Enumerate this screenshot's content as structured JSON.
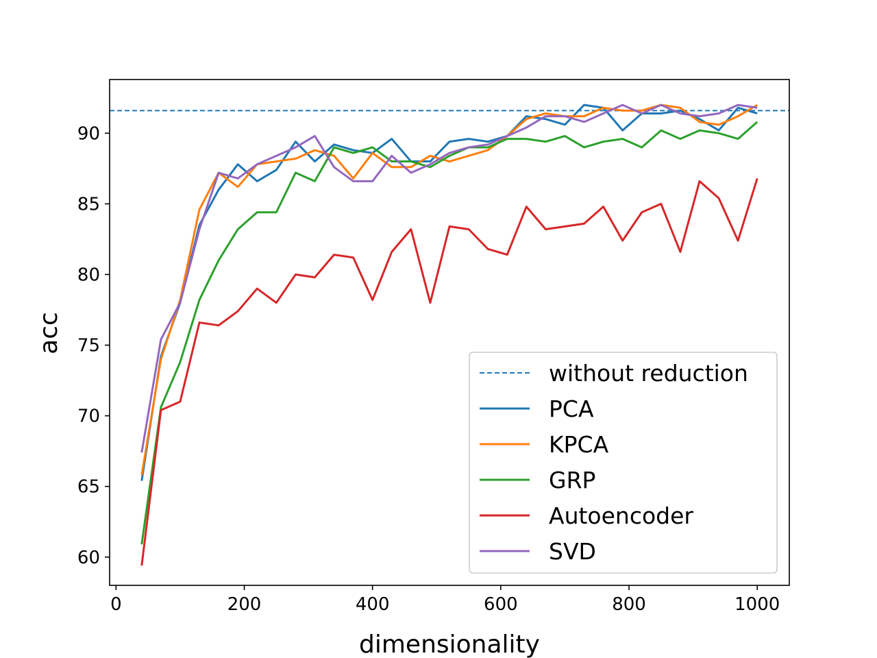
{
  "chart_data": {
    "type": "line",
    "title": "",
    "xlabel": "dimensionality",
    "ylabel": "acc",
    "xlim": [
      -10,
      1050
    ],
    "ylim": [
      58,
      93.8
    ],
    "xticks": [
      0,
      200,
      400,
      600,
      800,
      1000
    ],
    "yticks": [
      60,
      65,
      70,
      75,
      80,
      85,
      90
    ],
    "grid": false,
    "legend_position": "lower-right",
    "reference_line": {
      "name": "without reduction",
      "y": 91.6,
      "color": "#1f77b4",
      "style": "dashed"
    },
    "x": [
      40,
      70,
      100,
      130,
      160,
      190,
      220,
      250,
      280,
      310,
      340,
      370,
      400,
      430,
      460,
      490,
      520,
      550,
      580,
      610,
      640,
      670,
      700,
      730,
      760,
      790,
      820,
      850,
      880,
      910,
      940,
      970,
      1000
    ],
    "series": [
      {
        "name": "PCA",
        "color": "#1f77b4",
        "values": [
          65.4,
          74.2,
          78.0,
          83.5,
          86.0,
          87.8,
          86.6,
          87.4,
          89.4,
          88.0,
          89.2,
          88.8,
          88.6,
          89.6,
          88.0,
          88.0,
          89.4,
          89.6,
          89.4,
          89.8,
          91.2,
          91.0,
          90.6,
          92.0,
          91.8,
          90.2,
          91.4,
          91.4,
          91.6,
          91.0,
          90.2,
          91.8,
          91.4
        ]
      },
      {
        "name": "KPCA",
        "color": "#ff7f0e",
        "values": [
          65.8,
          74.0,
          78.2,
          84.6,
          87.2,
          86.2,
          87.8,
          88.0,
          88.2,
          88.8,
          88.4,
          86.8,
          88.6,
          87.6,
          87.6,
          88.4,
          88.0,
          88.4,
          88.8,
          89.8,
          91.0,
          91.4,
          91.2,
          91.2,
          91.8,
          91.6,
          91.6,
          92.0,
          91.8,
          90.8,
          90.6,
          91.2,
          92.0
        ]
      },
      {
        "name": "GRP",
        "color": "#2ca02c",
        "values": [
          60.9,
          70.6,
          73.8,
          78.2,
          81.0,
          83.2,
          84.4,
          84.4,
          87.2,
          86.6,
          89.0,
          88.6,
          89.0,
          88.0,
          88.0,
          87.6,
          88.4,
          89.0,
          89.0,
          89.6,
          89.6,
          89.4,
          89.8,
          89.0,
          89.4,
          89.6,
          89.0,
          90.2,
          89.6,
          90.2,
          90.0,
          89.6,
          90.8
        ]
      },
      {
        "name": "Autoencoder",
        "color": "#d62728",
        "values": [
          59.4,
          70.4,
          71.0,
          76.6,
          76.4,
          77.4,
          79.0,
          78.0,
          80.0,
          79.8,
          81.4,
          81.2,
          78.2,
          81.6,
          83.2,
          78.0,
          83.4,
          83.2,
          81.8,
          81.4,
          84.8,
          83.2,
          83.4,
          83.6,
          84.8,
          82.4,
          84.4,
          85.0,
          81.6,
          86.6,
          85.4,
          82.4,
          86.8
        ]
      },
      {
        "name": "SVD",
        "color": "#9467bd",
        "values": [
          67.4,
          75.4,
          78.0,
          83.2,
          87.2,
          86.8,
          87.8,
          88.4,
          89.0,
          89.8,
          87.6,
          86.6,
          86.6,
          88.4,
          87.2,
          87.8,
          88.6,
          89.0,
          89.2,
          89.8,
          90.4,
          91.2,
          91.2,
          90.8,
          91.4,
          92.0,
          91.4,
          92.0,
          91.4,
          91.2,
          91.4,
          92.0,
          91.8
        ]
      }
    ]
  }
}
